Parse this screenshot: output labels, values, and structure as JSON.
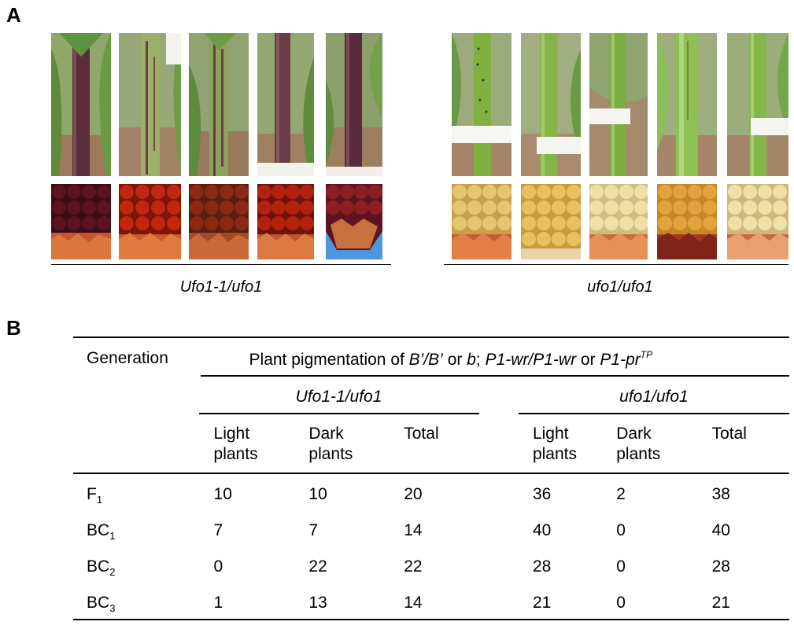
{
  "panel_a": {
    "letter": "A",
    "left_label": "Ufo1-1/ufo1",
    "right_label": "ufo1/ufo1",
    "left_photos": [
      {
        "stalk": "purple",
        "kernel": "dark-red"
      },
      {
        "stalk": "green-purple-streak",
        "kernel": "red"
      },
      {
        "stalk": "green-purple-streak",
        "kernel": "red-brown"
      },
      {
        "stalk": "purple",
        "kernel": "red"
      },
      {
        "stalk": "dark-purple",
        "kernel": "red-blue"
      }
    ],
    "right_photos": [
      {
        "stalk": "green-spotted",
        "kernel": "yellow"
      },
      {
        "stalk": "green",
        "kernel": "yellow"
      },
      {
        "stalk": "green",
        "kernel": "pale-yellow"
      },
      {
        "stalk": "green",
        "kernel": "orange-yellow"
      },
      {
        "stalk": "green",
        "kernel": "pale-yellow"
      }
    ],
    "colors": {
      "dark-red": "#5a1320",
      "red": "#b3220f",
      "red-brown": "#8a2a14",
      "red-blue": "#8c1f23",
      "yellow": "#e6c570",
      "pale-yellow": "#efe0a8",
      "orange-yellow": "#e2a23c"
    }
  },
  "panel_b": {
    "letter": "B",
    "header_generation": "Generation",
    "header_main_text_1": "Plant pigmentation of ",
    "header_main_b1": "B’/B’",
    "header_main_text_2": " or ",
    "header_main_b2": "b",
    "header_main_text_3": "; ",
    "header_main_p1": "P1-wr/P1-wr",
    "header_main_text_4": " or ",
    "header_main_p2": "P1-pr",
    "header_main_sup": "TP",
    "group_left": "Ufo1-1/ufo1",
    "group_right": "ufo1/ufo1",
    "col_light_1": "Light",
    "col_light_2": "plants",
    "col_dark_1": "Dark",
    "col_dark_2": "plants",
    "col_total": "Total",
    "rows": [
      {
        "gen": "F",
        "sub": "1",
        "left_light": "10",
        "left_dark": "10",
        "left_total": "20",
        "right_light": "36",
        "right_dark": "2",
        "right_total": "38"
      },
      {
        "gen": "BC",
        "sub": "1",
        "left_light": "7",
        "left_dark": "7",
        "left_total": "14",
        "right_light": "40",
        "right_dark": "0",
        "right_total": "40"
      },
      {
        "gen": "BC",
        "sub": "2",
        "left_light": "0",
        "left_dark": "22",
        "left_total": "22",
        "right_light": "28",
        "right_dark": "0",
        "right_total": "28"
      },
      {
        "gen": "BC",
        "sub": "3",
        "left_light": "1",
        "left_dark": "13",
        "left_total": "14",
        "right_light": "21",
        "right_dark": "0",
        "right_total": "21"
      }
    ]
  }
}
